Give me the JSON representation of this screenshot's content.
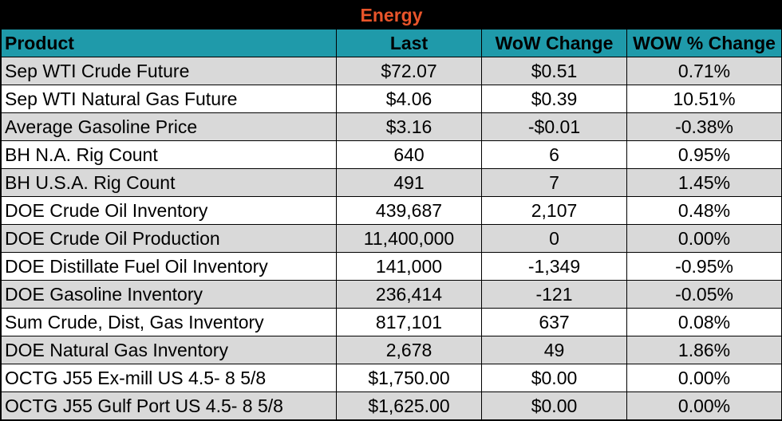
{
  "title": "Energy",
  "colors": {
    "title_bg": "#000000",
    "title_text": "#e8542a",
    "header_bg": "#1f9aaa",
    "row_shaded": "#d9d9d9",
    "row_plain": "#ffffff"
  },
  "columns": [
    "Product",
    "Last",
    "WoW Change",
    "WOW % Change"
  ],
  "rows": [
    {
      "product": "Sep WTI Crude Future",
      "last": "$72.07",
      "wow": "$0.51",
      "pct": "0.71%"
    },
    {
      "product": "Sep WTI Natural Gas Future",
      "last": "$4.06",
      "wow": "$0.39",
      "pct": "10.51%"
    },
    {
      "product": "Average Gasoline Price",
      "last": "$3.16",
      "wow": "-$0.01",
      "pct": "-0.38%"
    },
    {
      "product": "BH N.A. Rig Count",
      "last": "640",
      "wow": "6",
      "pct": "0.95%"
    },
    {
      "product": "BH U.S.A. Rig Count",
      "last": "491",
      "wow": "7",
      "pct": "1.45%"
    },
    {
      "product": "DOE Crude Oil Inventory",
      "last": "439,687",
      "wow": "2,107",
      "pct": "0.48%"
    },
    {
      "product": "DOE Crude Oil Production",
      "last": "11,400,000",
      "wow": "0",
      "pct": "0.00%"
    },
    {
      "product": "DOE Distillate Fuel Oil Inventory",
      "last": "141,000",
      "wow": "-1,349",
      "pct": "-0.95%"
    },
    {
      "product": "DOE Gasoline Inventory",
      "last": "236,414",
      "wow": "-121",
      "pct": "-0.05%"
    },
    {
      "product": "Sum Crude, Dist, Gas Inventory",
      "last": "817,101",
      "wow": "637",
      "pct": "0.08%"
    },
    {
      "product": "DOE Natural Gas Inventory",
      "last": "2,678",
      "wow": "49",
      "pct": "1.86%"
    },
    {
      "product": "OCTG J55 Ex-mill US 4.5- 8 5/8",
      "last": "$1,750.00",
      "wow": "$0.00",
      "pct": "0.00%"
    },
    {
      "product": "OCTG J55 Gulf Port US 4.5- 8 5/8",
      "last": "$1,625.00",
      "wow": "$0.00",
      "pct": "0.00%"
    }
  ]
}
